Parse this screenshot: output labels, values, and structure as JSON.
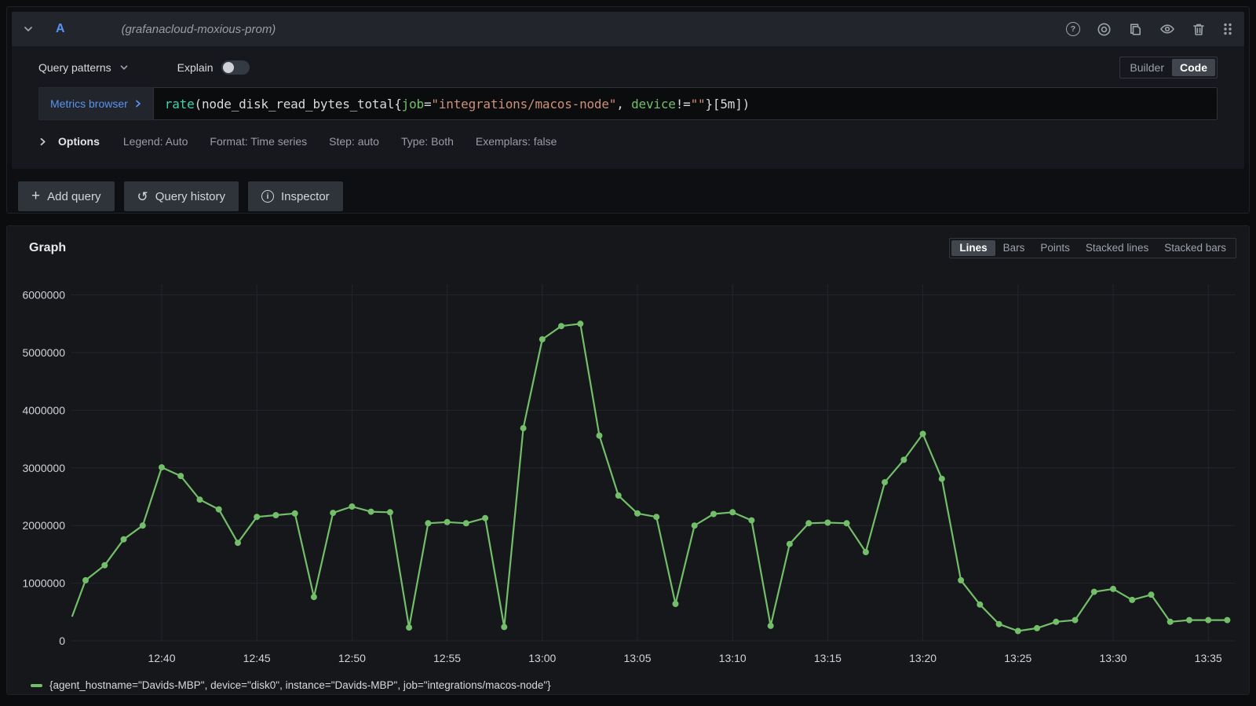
{
  "colors": {
    "series_green": "#73BF69",
    "accent_blue": "#5794F2",
    "grid_line": "#24262c",
    "axis_text": "#d2d3d8",
    "code_function": "#3fd2ae",
    "code_label": "#73bf69",
    "code_string": "#ce9178"
  },
  "query_editor": {
    "ref_id": "A",
    "datasource_hint": "(grafanacloud-moxious-prom)",
    "header_icons": [
      "chevron-down-icon",
      "help-icon",
      "record-icon",
      "copy-icon",
      "eye-icon",
      "trash-icon",
      "drag-handle-icon"
    ],
    "query_patterns_label": "Query patterns",
    "explain_label": "Explain",
    "explain_enabled": false,
    "editor_modes": [
      "Builder",
      "Code"
    ],
    "editor_mode_selected": "Code",
    "metrics_browser_label": "Metrics browser",
    "query_tokens": [
      {
        "text": "rate",
        "type": "function"
      },
      {
        "text": "(node_disk_read_bytes_total{",
        "type": "plain"
      },
      {
        "text": "job",
        "type": "label"
      },
      {
        "text": "=",
        "type": "plain"
      },
      {
        "text": "\"integrations/macos-node\"",
        "type": "string"
      },
      {
        "text": ", ",
        "type": "plain"
      },
      {
        "text": "device",
        "type": "label"
      },
      {
        "text": "!=",
        "type": "plain"
      },
      {
        "text": "\"\"",
        "type": "string"
      },
      {
        "text": "}[5m])",
        "type": "plain"
      }
    ],
    "options": {
      "toggle_label": "Options",
      "summary": [
        "Legend: Auto",
        "Format: Time series",
        "Step: auto",
        "Type: Both",
        "Exemplars: false"
      ]
    },
    "actions": {
      "add_query": "Add query",
      "query_history": "Query history",
      "inspector": "Inspector"
    }
  },
  "graph_panel": {
    "title": "Graph",
    "view_modes": [
      "Lines",
      "Bars",
      "Points",
      "Stacked lines",
      "Stacked bars"
    ],
    "view_mode_selected": "Lines",
    "legend": {
      "label": "{agent_hostname=\"Davids-MBP\", device=\"disk0\", instance=\"Davids-MBP\", job=\"integrations/macos-node\"}",
      "color": "#73BF69"
    }
  },
  "chart_data": {
    "type": "line",
    "title": "Graph",
    "xlabel": "",
    "ylabel": "",
    "grid": true,
    "legend_position": "bottom",
    "ylim": [
      0,
      6000000
    ],
    "y_ticks": [
      {
        "value": 0,
        "label": "0"
      },
      {
        "value": 1000000,
        "label": "1000000"
      },
      {
        "value": 2000000,
        "label": "2000000"
      },
      {
        "value": 3000000,
        "label": "3000000"
      },
      {
        "value": 4000000,
        "label": "4000000"
      },
      {
        "value": 5000000,
        "label": "5000000"
      },
      {
        "value": 6000000,
        "label": "6000000"
      }
    ],
    "x_unit": "minutes relative to 12:40",
    "x_ticks": [
      {
        "t": 0,
        "label": "12:40"
      },
      {
        "t": 5,
        "label": "12:45"
      },
      {
        "t": 10,
        "label": "12:50"
      },
      {
        "t": 15,
        "label": "12:55"
      },
      {
        "t": 20,
        "label": "13:00"
      },
      {
        "t": 25,
        "label": "13:05"
      },
      {
        "t": 30,
        "label": "13:10"
      },
      {
        "t": 35,
        "label": "13:15"
      },
      {
        "t": 40,
        "label": "13:20"
      },
      {
        "t": 45,
        "label": "13:25"
      },
      {
        "t": 50,
        "label": "13:30"
      },
      {
        "t": 55,
        "label": "13:35"
      }
    ],
    "series": [
      {
        "name": "{agent_hostname=\"Davids-MBP\", device=\"disk0\", instance=\"Davids-MBP\", job=\"integrations/macos-node\"}",
        "color": "#73BF69",
        "first_point_clipped": true,
        "points": [
          [
            -4.7,
            430000
          ],
          [
            -4,
            1050000
          ],
          [
            -3,
            1310000
          ],
          [
            -2,
            1760000
          ],
          [
            -1,
            2000000
          ],
          [
            0,
            3010000
          ],
          [
            1,
            2860000
          ],
          [
            2,
            2450000
          ],
          [
            3,
            2280000
          ],
          [
            4,
            1700000
          ],
          [
            5,
            2150000
          ],
          [
            6,
            2180000
          ],
          [
            7,
            2210000
          ],
          [
            8,
            760000
          ],
          [
            9,
            2220000
          ],
          [
            10,
            2330000
          ],
          [
            11,
            2240000
          ],
          [
            12,
            2230000
          ],
          [
            13,
            230000
          ],
          [
            14,
            2040000
          ],
          [
            15,
            2060000
          ],
          [
            16,
            2040000
          ],
          [
            17,
            2130000
          ],
          [
            18,
            240000
          ],
          [
            19,
            3690000
          ],
          [
            20,
            5230000
          ],
          [
            21,
            5460000
          ],
          [
            22,
            5500000
          ],
          [
            23,
            3560000
          ],
          [
            24,
            2520000
          ],
          [
            25,
            2210000
          ],
          [
            26,
            2150000
          ],
          [
            27,
            640000
          ],
          [
            28,
            2000000
          ],
          [
            29,
            2200000
          ],
          [
            30,
            2230000
          ],
          [
            31,
            2090000
          ],
          [
            32,
            260000
          ],
          [
            33,
            1680000
          ],
          [
            34,
            2040000
          ],
          [
            35,
            2050000
          ],
          [
            36,
            2040000
          ],
          [
            37,
            1540000
          ],
          [
            38,
            2750000
          ],
          [
            39,
            3140000
          ],
          [
            40,
            3590000
          ],
          [
            41,
            2810000
          ],
          [
            42,
            1050000
          ],
          [
            43,
            630000
          ],
          [
            44,
            290000
          ],
          [
            45,
            170000
          ],
          [
            46,
            220000
          ],
          [
            47,
            330000
          ],
          [
            48,
            360000
          ],
          [
            49,
            850000
          ],
          [
            50,
            900000
          ],
          [
            51,
            710000
          ],
          [
            52,
            800000
          ],
          [
            53,
            330000
          ],
          [
            54,
            360000
          ],
          [
            55,
            360000
          ],
          [
            56,
            360000
          ]
        ]
      }
    ]
  }
}
